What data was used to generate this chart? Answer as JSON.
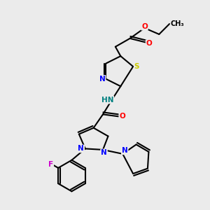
{
  "bg_color": "#ebebeb",
  "atom_colors": {
    "C": "#000000",
    "N": "#0000ff",
    "O": "#ff0000",
    "S": "#cccc00",
    "F": "#cc00cc",
    "HN": "#008080",
    "default": "#000000"
  },
  "figsize": [
    3.0,
    3.0
  ],
  "dpi": 100
}
